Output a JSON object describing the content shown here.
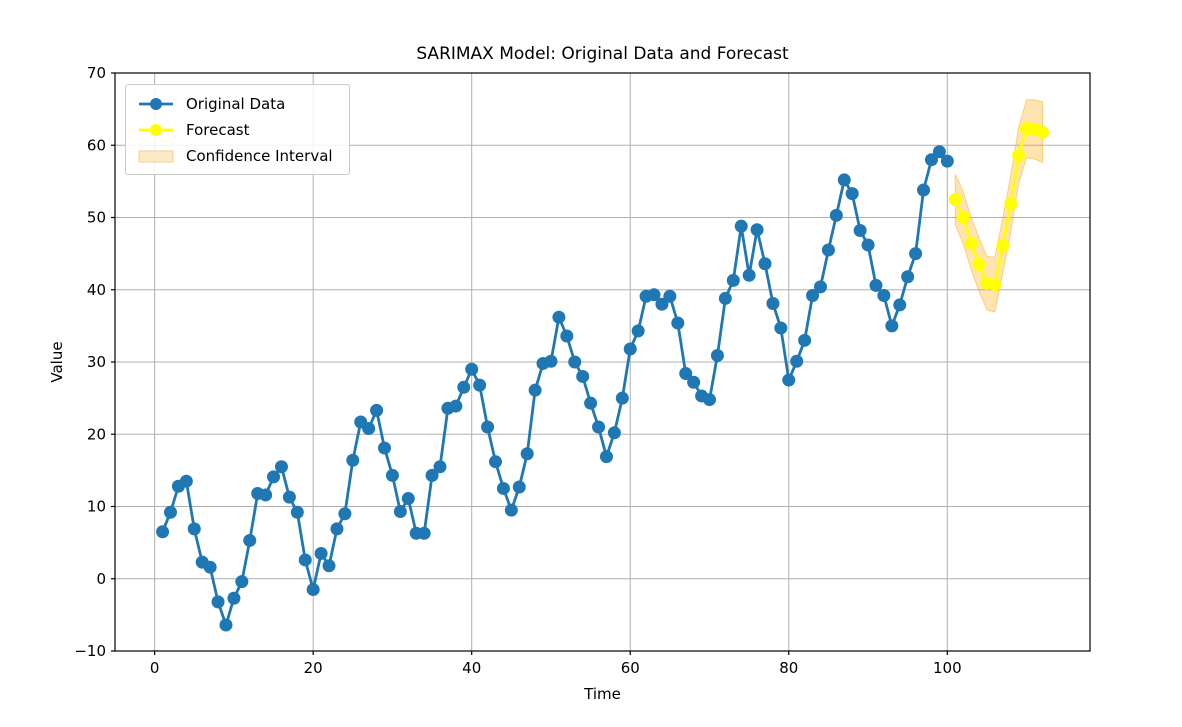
{
  "figure": {
    "title": "SARIMAX Model: Original Data and Forecast",
    "xlabel": "Time",
    "ylabel": "Value"
  },
  "chart_data": {
    "type": "line",
    "title": "SARIMAX Model: Original Data and Forecast",
    "xlabel": "Time",
    "ylabel": "Value",
    "xlim": [
      -5,
      118
    ],
    "ylim": [
      -10,
      70
    ],
    "xticks": [
      0,
      20,
      40,
      60,
      80,
      100
    ],
    "yticks": [
      -10,
      0,
      10,
      20,
      30,
      40,
      50,
      60,
      70
    ],
    "grid": true,
    "grid_color": "#b0b0b0",
    "legend": {
      "position": "upper-left",
      "items": [
        {
          "label": "Original Data",
          "type": "line-marker",
          "color": "#1f77b4"
        },
        {
          "label": "Forecast",
          "type": "line-marker",
          "color": "#ffff00"
        },
        {
          "label": "Confidence Interval",
          "type": "patch",
          "fill": "#fdebc8",
          "edge": "#f2cf90"
        }
      ]
    },
    "series": [
      {
        "name": "Original Data",
        "color": "#1f77b4",
        "marker": "o",
        "x": [
          1,
          2,
          3,
          4,
          5,
          6,
          7,
          8,
          9,
          10,
          11,
          12,
          13,
          14,
          15,
          16,
          17,
          18,
          19,
          20,
          21,
          22,
          23,
          24,
          25,
          26,
          27,
          28,
          29,
          30,
          31,
          32,
          33,
          34,
          35,
          36,
          37,
          38,
          39,
          40,
          41,
          42,
          43,
          44,
          45,
          46,
          47,
          48,
          49,
          50,
          51,
          52,
          53,
          54,
          55,
          56,
          57,
          58,
          59,
          60,
          61,
          62,
          63,
          64,
          65,
          66,
          67,
          68,
          69,
          70,
          71,
          72,
          73,
          74,
          75,
          76,
          77,
          78,
          79,
          80,
          81,
          82,
          83,
          84,
          85,
          86,
          87,
          88,
          89,
          90,
          91,
          92,
          93,
          94,
          95,
          96,
          97,
          98,
          99,
          100
        ],
        "y": [
          6.5,
          9.2,
          12.8,
          13.5,
          6.9,
          2.3,
          1.6,
          -3.2,
          -6.4,
          -2.7,
          -0.4,
          5.3,
          11.8,
          11.6,
          14.1,
          15.5,
          11.3,
          9.2,
          2.6,
          -1.5,
          3.5,
          1.8,
          6.9,
          9.0,
          16.4,
          21.7,
          20.8,
          23.3,
          18.1,
          14.3,
          9.3,
          11.1,
          6.3,
          6.3,
          14.3,
          15.5,
          23.6,
          23.9,
          26.5,
          29.0,
          26.8,
          21.0,
          16.2,
          12.5,
          9.5,
          12.7,
          17.3,
          26.1,
          29.8,
          30.1,
          36.2,
          33.6,
          30.0,
          28.0,
          24.3,
          21.0,
          16.9,
          20.2,
          25.0,
          31.8,
          34.3,
          39.1,
          39.3,
          38.0,
          39.1,
          35.4,
          28.4,
          27.2,
          25.3,
          24.8,
          30.9,
          38.8,
          41.3,
          48.8,
          42.0,
          48.3,
          43.6,
          38.1,
          34.7,
          27.5,
          30.1,
          33.0,
          39.2,
          40.4,
          45.5,
          50.3,
          55.2,
          53.3,
          48.2,
          46.2,
          40.6,
          39.2,
          35.0,
          37.9,
          41.8,
          45.0,
          53.8,
          58.0,
          59.1,
          57.8
        ]
      },
      {
        "name": "Forecast",
        "color": "#ffff00",
        "marker": "o",
        "x": [
          101,
          102,
          103,
          104,
          105,
          106,
          107,
          108,
          109,
          110,
          111,
          112
        ],
        "y": [
          52.5,
          50.0,
          46.4,
          43.5,
          40.9,
          40.7,
          46.1,
          51.9,
          58.6,
          62.3,
          62.2,
          61.8
        ]
      }
    ],
    "confidence_interval": {
      "name": "Confidence Interval",
      "x": [
        101,
        102,
        103,
        104,
        105,
        106,
        107,
        108,
        109,
        110,
        111,
        112
      ],
      "lower": [
        49.0,
        46.4,
        42.8,
        39.8,
        37.2,
        36.9,
        42.3,
        48.0,
        54.7,
        58.3,
        58.1,
        57.6
      ],
      "upper": [
        56.0,
        53.6,
        50.0,
        47.2,
        44.6,
        44.5,
        49.9,
        55.8,
        62.5,
        66.3,
        66.3,
        66.0
      ],
      "fill_rgba": "rgba(255,165,0,0.30)",
      "edge_rgba": "rgba(255,165,0,0.45)"
    }
  }
}
